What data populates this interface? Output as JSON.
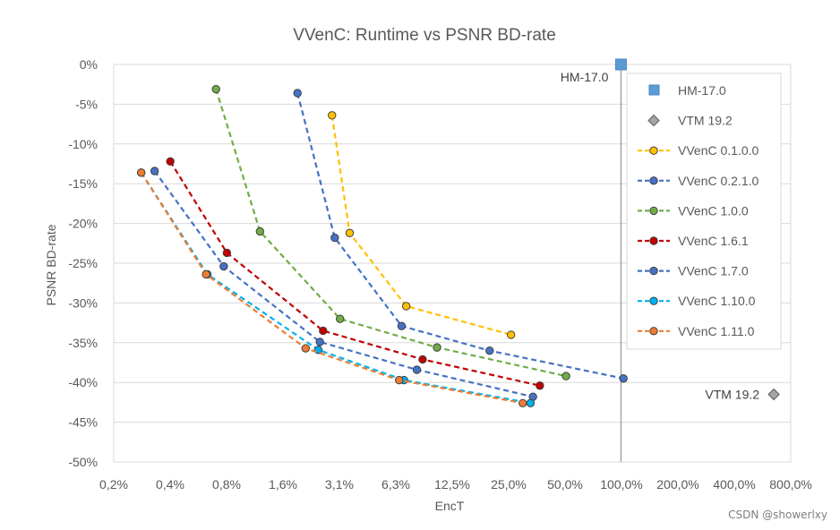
{
  "chart_data": {
    "type": "scatter",
    "title": "VVenC: Runtime vs PSNR BD-rate",
    "xlabel": "EncT",
    "ylabel": "PSNR BD-rate",
    "x_scale": "log2",
    "x_ticks": [
      "0,2%",
      "0,4%",
      "0,8%",
      "1,6%",
      "3,1%",
      "6,3%",
      "12,5%",
      "25,0%",
      "50,0%",
      "100,0%",
      "200,0%",
      "400,0%",
      "800,0%"
    ],
    "y_ticks": [
      "0%",
      "-5%",
      "-10%",
      "-15%",
      "-20%",
      "-25%",
      "-30%",
      "-35%",
      "-40%",
      "-45%",
      "-50%"
    ],
    "ylim": [
      -50,
      0
    ],
    "xlim_percent": [
      0.2,
      800
    ],
    "grid": "horizontal",
    "legend_position": "right",
    "series": [
      {
        "name": "HM-17.0",
        "marker": "square",
        "line": false,
        "color": "#5b9bd5",
        "x": [
          100
        ],
        "y": [
          0
        ]
      },
      {
        "name": "VTM 19.2",
        "marker": "diamond",
        "line": false,
        "color": "#a5a5a5",
        "x": [
          650
        ],
        "y": [
          -41.5
        ]
      },
      {
        "name": "VVenC 0.1.0.0",
        "marker": "circle",
        "line": true,
        "color": "#ffc000",
        "x": [
          2.9,
          3.6,
          7.2,
          26
        ],
        "y": [
          -6.4,
          -21.2,
          -30.4,
          -34
        ]
      },
      {
        "name": "VVenC 0.2.1.0",
        "marker": "circle",
        "line": true,
        "color": "#4472c4",
        "x": [
          1.9,
          3.0,
          6.8,
          20,
          103
        ],
        "y": [
          -3.6,
          -21.8,
          -32.9,
          -36.0,
          -39.5
        ]
      },
      {
        "name": "VVenC 1.0.0",
        "marker": "circle",
        "line": true,
        "color": "#70ad47",
        "x": [
          0.7,
          1.2,
          3.2,
          10.5,
          51
        ],
        "y": [
          -3.1,
          -21.0,
          -32.0,
          -35.6,
          -39.2
        ]
      },
      {
        "name": "VVenC 1.6.1",
        "marker": "circle",
        "line": true,
        "color": "#c00000",
        "x": [
          0.4,
          0.8,
          2.6,
          8.8,
          37
        ],
        "y": [
          -12.2,
          -23.7,
          -33.5,
          -37.1,
          -40.4
        ]
      },
      {
        "name": "VVenC 1.7.0",
        "marker": "circle",
        "line": true,
        "color": "#4472c4",
        "x": [
          0.33,
          0.77,
          2.5,
          8.2,
          34
        ],
        "y": [
          -13.4,
          -25.4,
          -34.9,
          -38.4,
          -41.8
        ]
      },
      {
        "name": "VVenC 1.10.0",
        "marker": "circle",
        "line": true,
        "color": "#00b0f0",
        "x": [
          0.28,
          0.63,
          2.45,
          7.0,
          33
        ],
        "y": [
          -13.6,
          -26.4,
          -35.9,
          -39.7,
          -42.6
        ]
      },
      {
        "name": "VVenC 1.11.0",
        "marker": "circle",
        "line": true,
        "color": "#ed7d31",
        "x": [
          0.28,
          0.62,
          2.1,
          6.6,
          30
        ],
        "y": [
          -13.6,
          -26.4,
          -35.7,
          -39.7,
          -42.6
        ]
      }
    ],
    "annotations": [
      {
        "text": "HM-17.0",
        "series": "HM-17.0"
      },
      {
        "text": "VTM 19.2",
        "series": "VTM 19.2"
      }
    ]
  },
  "watermark": "CSDN @showerlxy"
}
